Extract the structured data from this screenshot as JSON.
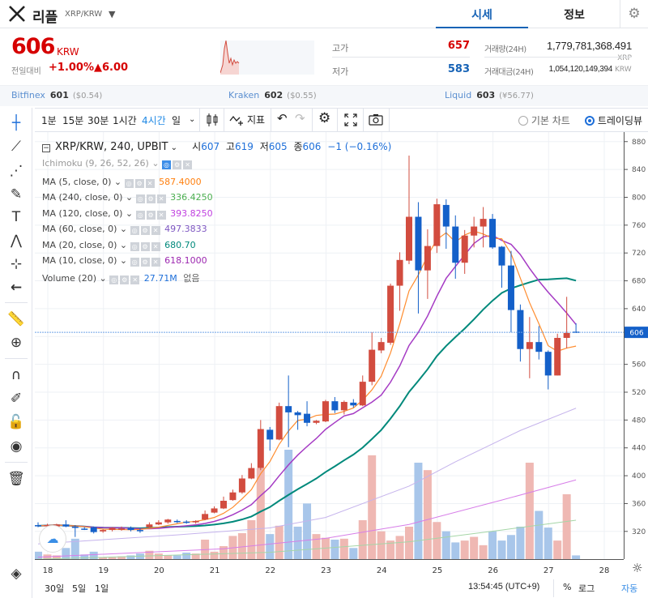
{
  "header": {
    "logo": "X",
    "coin_name": "리플",
    "pair": "XRP/KRW",
    "tabs": [
      "시세",
      "정보"
    ],
    "active_tab": "시세"
  },
  "ticker": {
    "price": "606",
    "unit": "KRW",
    "compare_label": "전일대비",
    "change_pct": "+1.00%",
    "change_abs": "▲6.00",
    "high_label": "고가",
    "high": "657",
    "low_label": "저가",
    "low": "583",
    "volume_label": "거래량(24H)",
    "volume": "1,779,781,368.491",
    "volume_unit": "XRP",
    "value_label": "거래대금(24H)",
    "value": "1,054,120,149,394",
    "value_unit": "KRW"
  },
  "exchanges": [
    {
      "name": "Bitfinex",
      "price": "601",
      "usd": "($0.54)"
    },
    {
      "name": "Kraken",
      "price": "602",
      "usd": "($0.55)"
    },
    {
      "name": "Liquid",
      "price": "603",
      "usd": "(¥56.77)"
    }
  ],
  "toolbar": {
    "intervals": [
      "1분",
      "15분",
      "30분",
      "1시간",
      "4시간",
      "일"
    ],
    "active_interval": "4시간",
    "indicators_label": "지표",
    "chart_types": [
      "기본 차트",
      "트레이딩뷰"
    ],
    "selected_chart_type": "트레이딩뷰"
  },
  "legend": {
    "symbol": "XRP/KRW, 240, UPBIT",
    "o_label": "시",
    "o": "607",
    "h_label": "고",
    "h": "619",
    "l_label": "저",
    "l": "605",
    "c_label": "종",
    "c": "606",
    "change": "−1 (−0.16%)",
    "indicators": [
      {
        "name": "Ichimoku (9, 26, 52, 26)",
        "value": ""
      },
      {
        "name": "MA (5, close, 0)",
        "value": "587.4000",
        "color": "#ff7f0e"
      },
      {
        "name": "MA (240, close, 0)",
        "value": "336.4250",
        "color": "#4caf50"
      },
      {
        "name": "MA (120, close, 0)",
        "value": "393.8250",
        "color": "#c040e0"
      },
      {
        "name": "MA (60, close, 0)",
        "value": "497.3833",
        "color": "#7e57c2"
      },
      {
        "name": "MA (20, close, 0)",
        "value": "680.70",
        "color": "#00897b"
      },
      {
        "name": "MA (10, close, 0)",
        "value": "618.1000",
        "color": "#9c27b0"
      },
      {
        "name": "Volume (20)",
        "value": "27.71M",
        "extra": "없음",
        "color": "#1e6fd9"
      }
    ]
  },
  "footer": {
    "ranges": [
      "30일",
      "5일",
      "1일"
    ],
    "time": "13:54:45 (UTC+9)",
    "percent": "%",
    "log": "로그",
    "auto": "자동"
  },
  "colors": {
    "up": "#d24c3f",
    "down": "#1460c9",
    "up_vol": "#efb8b3",
    "down_vol": "#a8c6ea",
    "accent": "#1763b6"
  },
  "chart_data": {
    "type": "candlestick",
    "interval": "4h",
    "current_price": 606,
    "ylim": [
      300,
      890
    ],
    "y_ticks": [
      320,
      360,
      400,
      440,
      480,
      520,
      560,
      600,
      640,
      680,
      720,
      760,
      800,
      840,
      880
    ],
    "x_ticks": [
      "18",
      "19",
      "20",
      "21",
      "22",
      "23",
      "24",
      "25",
      "26",
      "27",
      "28"
    ],
    "ohlc": [
      [
        329,
        333,
        326,
        328
      ],
      [
        328,
        331,
        326,
        329
      ],
      [
        327,
        331,
        325,
        330
      ],
      [
        330,
        336,
        326,
        327
      ],
      [
        327,
        329,
        312,
        325
      ],
      [
        324,
        326,
        322,
        323
      ],
      [
        326,
        327,
        317,
        319
      ],
      [
        320,
        323,
        318,
        322
      ],
      [
        322,
        326,
        320,
        325
      ],
      [
        323,
        327,
        321,
        324
      ],
      [
        325,
        327,
        320,
        322
      ],
      [
        322,
        324,
        318,
        321
      ],
      [
        326,
        333,
        325,
        330
      ],
      [
        330,
        336,
        329,
        333
      ],
      [
        333,
        338,
        331,
        337
      ],
      [
        335,
        337,
        332,
        334
      ],
      [
        334,
        336,
        331,
        333
      ],
      [
        333,
        336,
        331,
        335
      ],
      [
        337,
        350,
        336,
        345
      ],
      [
        347,
        356,
        346,
        353
      ],
      [
        353,
        370,
        352,
        364
      ],
      [
        365,
        380,
        364,
        376
      ],
      [
        376,
        401,
        374,
        396
      ],
      [
        396,
        418,
        395,
        411
      ],
      [
        411,
        480,
        408,
        467
      ],
      [
        466,
        470,
        436,
        452
      ],
      [
        452,
        505,
        451,
        500
      ],
      [
        500,
        544,
        441,
        491
      ],
      [
        491,
        493,
        466,
        487
      ],
      [
        489,
        507,
        471,
        476
      ],
      [
        476,
        480,
        474,
        479
      ],
      [
        478,
        509,
        477,
        507
      ],
      [
        507,
        513,
        490,
        494
      ],
      [
        494,
        508,
        488,
        506
      ],
      [
        505,
        510,
        498,
        501
      ],
      [
        501,
        544,
        500,
        535
      ],
      [
        535,
        606,
        530,
        581
      ],
      [
        580,
        598,
        576,
        592
      ],
      [
        591,
        676,
        588,
        673
      ],
      [
        673,
        721,
        637,
        710
      ],
      [
        709,
        860,
        704,
        772
      ],
      [
        772,
        793,
        633,
        695
      ],
      [
        695,
        754,
        654,
        730
      ],
      [
        730,
        798,
        720,
        790
      ],
      [
        789,
        797,
        726,
        758
      ],
      [
        758,
        774,
        683,
        706
      ],
      [
        706,
        753,
        690,
        745
      ],
      [
        745,
        772,
        728,
        758
      ],
      [
        758,
        786,
        728,
        769
      ],
      [
        769,
        776,
        726,
        728
      ],
      [
        729,
        730,
        670,
        702
      ],
      [
        702,
        723,
        606,
        638
      ],
      [
        638,
        646,
        564,
        582
      ],
      [
        582,
        628,
        540,
        592
      ],
      [
        592,
        615,
        567,
        578
      ],
      [
        578,
        580,
        524,
        544
      ],
      [
        544,
        604,
        544,
        598
      ],
      [
        598,
        657,
        583,
        605
      ],
      [
        607,
        619,
        605,
        606
      ]
    ],
    "volume": [
      8,
      5,
      4,
      12,
      22,
      5,
      8,
      2,
      2,
      3,
      4,
      6,
      9,
      6,
      4,
      4,
      7,
      6,
      21,
      8,
      14,
      25,
      28,
      42,
      98,
      27,
      36,
      118,
      35,
      60,
      27,
      23,
      21,
      22,
      12,
      42,
      112,
      30,
      20,
      25,
      35,
      104,
      96,
      40,
      30,
      18,
      20,
      24,
      15,
      30,
      20,
      26,
      35,
      104,
      52,
      34,
      20,
      70,
      4
    ],
    "ma_long": {
      "MA60": [
        [
          0,
          302
        ],
        [
          15,
          315
        ],
        [
          25,
          325
        ],
        [
          31,
          340
        ],
        [
          40,
          385
        ],
        [
          45,
          420
        ],
        [
          52,
          465
        ],
        [
          58,
          497
        ]
      ],
      "MA120": [
        [
          0,
          283
        ],
        [
          20,
          295
        ],
        [
          31,
          310
        ],
        [
          40,
          330
        ],
        [
          50,
          365
        ],
        [
          58,
          394
        ]
      ],
      "MA240": [
        [
          0,
          280
        ],
        [
          25,
          290
        ],
        [
          40,
          305
        ],
        [
          50,
          322
        ],
        [
          58,
          336
        ]
      ]
    }
  }
}
